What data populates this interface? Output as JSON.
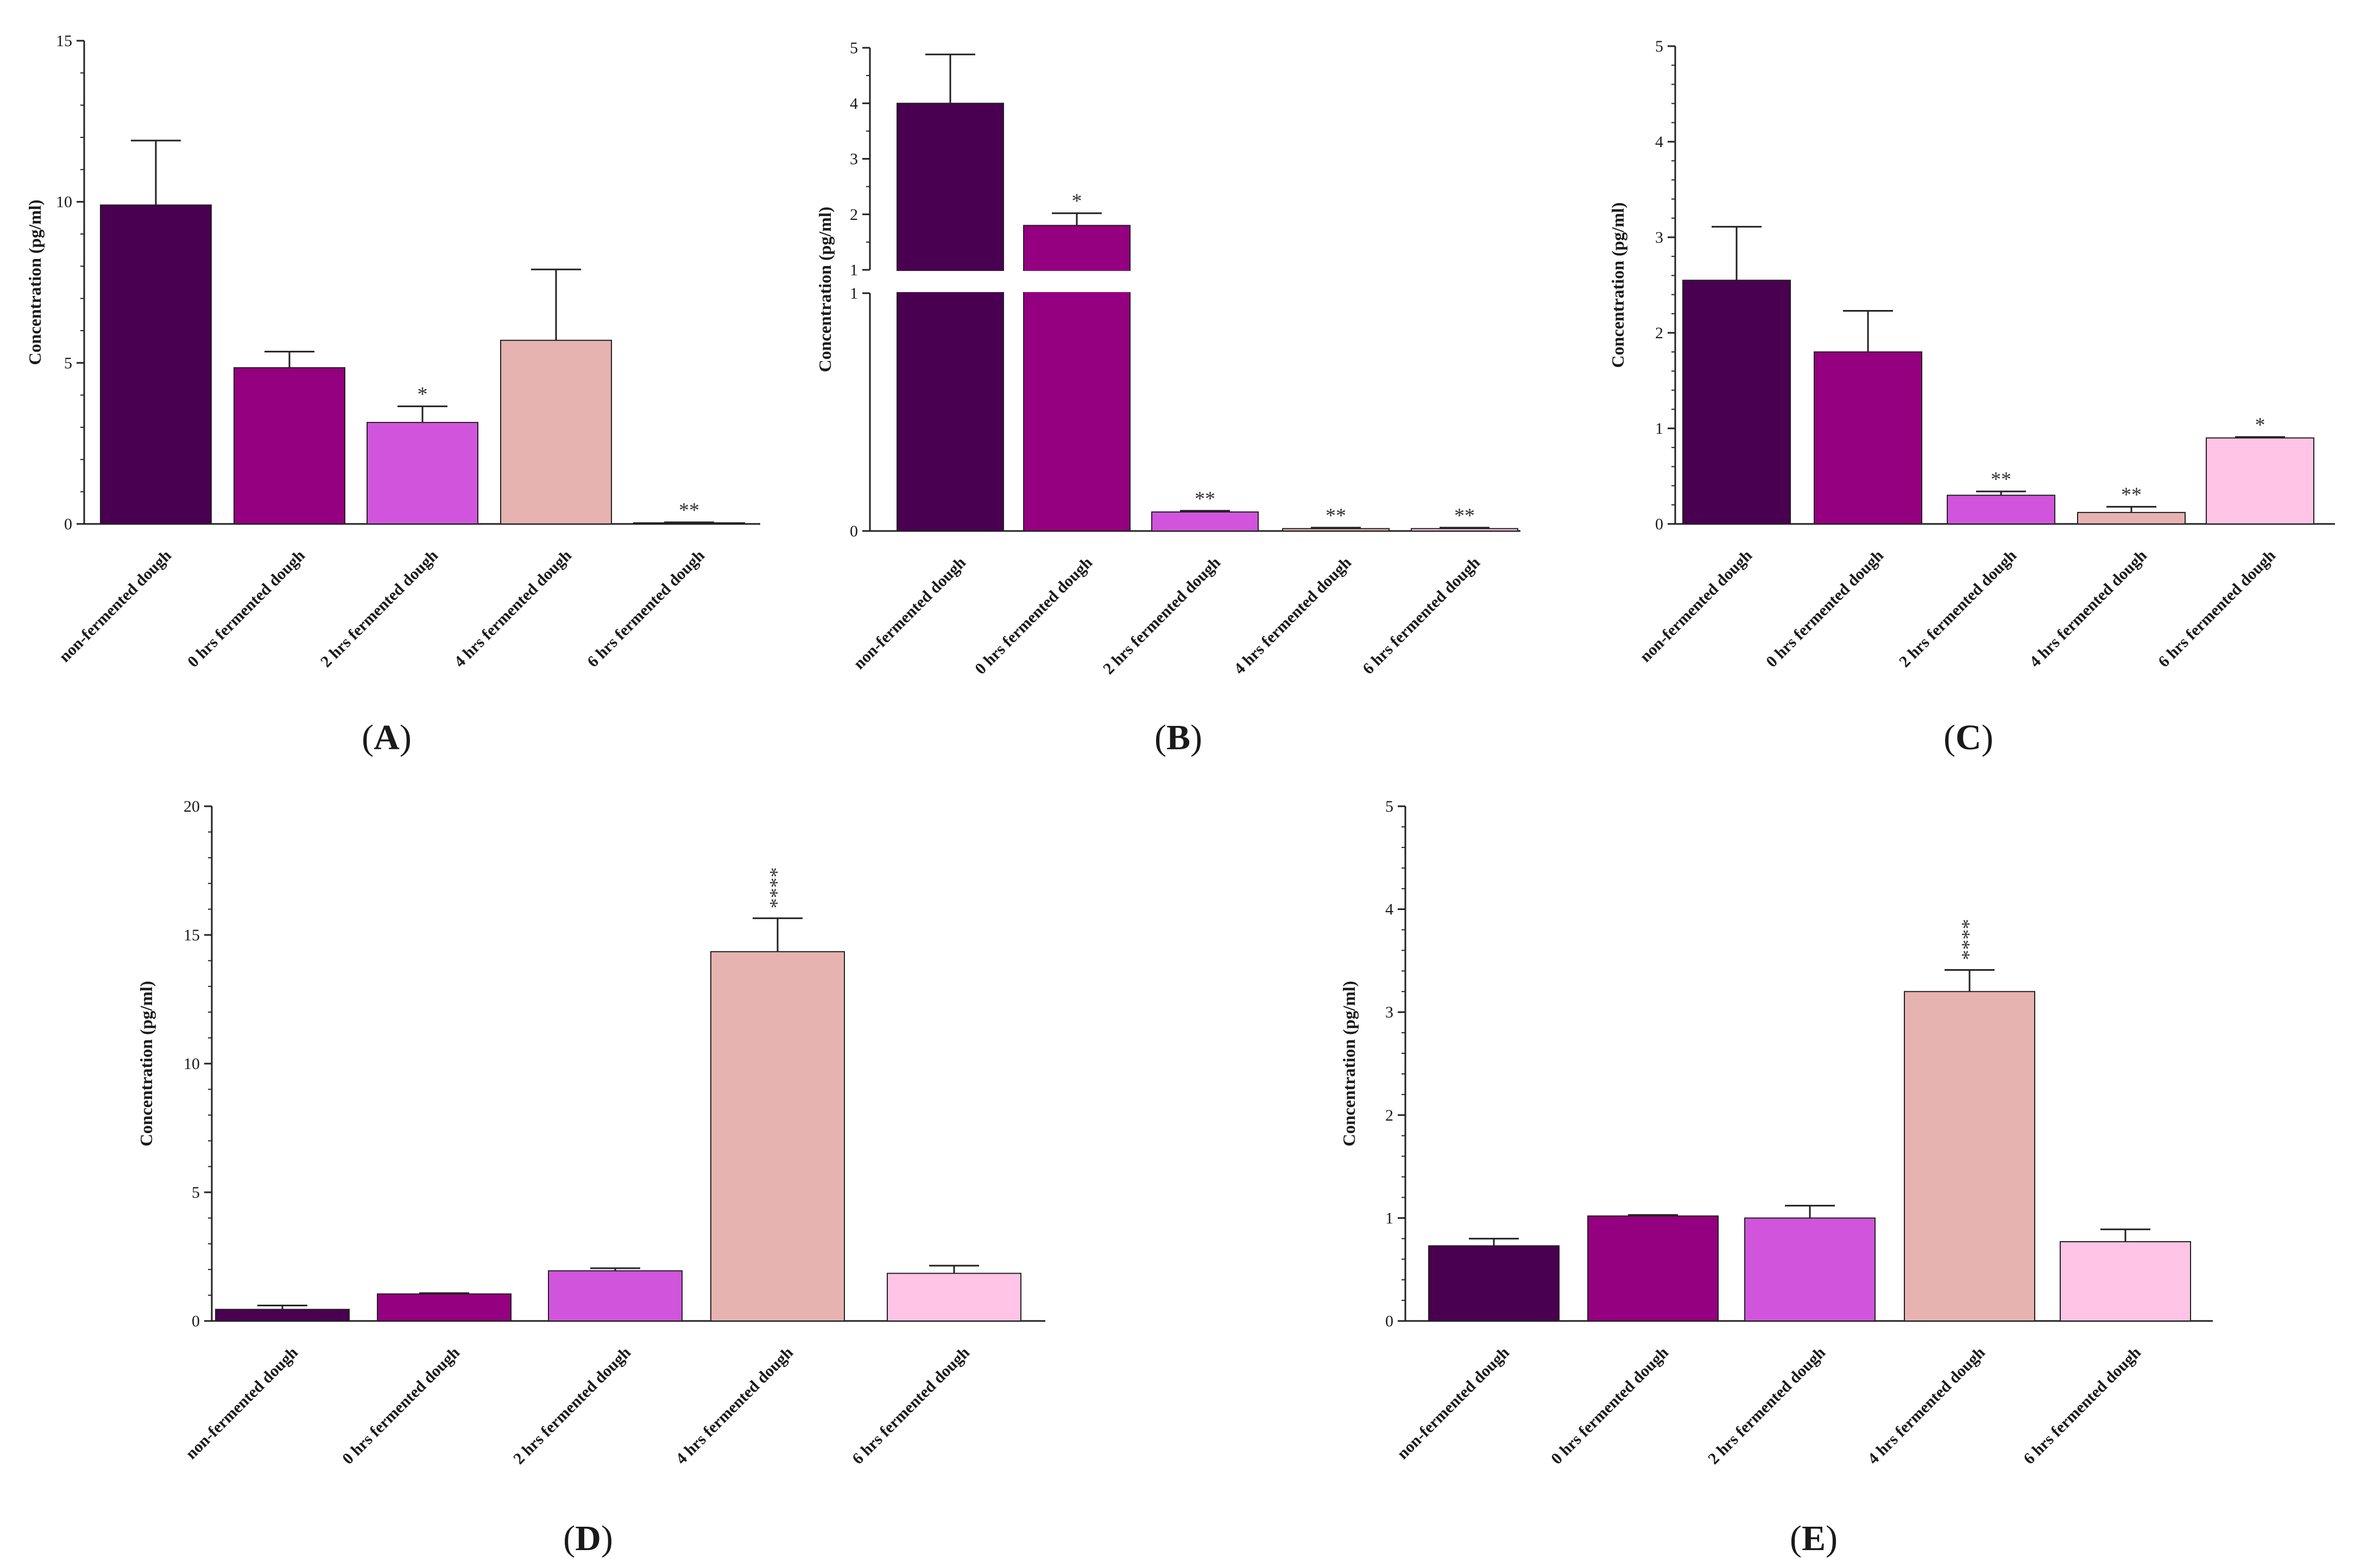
{
  "chart_data": [
    {
      "panel": "A",
      "type": "bar",
      "ylabel": "Concentration (pg/ml)",
      "ylim": [
        0,
        15
      ],
      "yticks": [
        0,
        5,
        10,
        15
      ],
      "categories": [
        "non-fermented dough",
        "0 hrs fermented dough",
        "2 hrs fermented dough",
        "4 hrs fermented dough",
        "6 hrs fermented dough"
      ],
      "values": [
        9.9,
        4.85,
        3.15,
        5.7,
        0.03
      ],
      "errors": [
        2.0,
        0.5,
        0.5,
        2.2,
        0.02
      ],
      "significance": [
        "",
        "",
        "*",
        "",
        "**"
      ],
      "colors": [
        "#4a0050",
        "#94007f",
        "#d155dc",
        "#e6b3b0",
        "#ffc4e6"
      ]
    },
    {
      "panel": "B",
      "type": "bar",
      "ylabel": "Concentration (pg/ml)",
      "broken_axis": true,
      "lower_ylim": [
        0,
        1
      ],
      "upper_ylim": [
        1,
        5
      ],
      "lower_yticks": [
        0,
        1
      ],
      "upper_yticks": [
        1,
        2,
        3,
        4,
        5
      ],
      "categories": [
        "non-fermented dough",
        "0 hrs fermented dough",
        "2 hrs fermented dough",
        "4 hrs fermented dough",
        "6 hrs fermented dough"
      ],
      "values": [
        4.0,
        1.8,
        0.08,
        0.01,
        0.01
      ],
      "errors": [
        0.88,
        0.22,
        0.005,
        0.004,
        0.004
      ],
      "significance": [
        "",
        "*",
        "**",
        "**",
        "**"
      ],
      "colors": [
        "#4a0050",
        "#94007f",
        "#d155dc",
        "#e6b3b0",
        "#ffc4e6"
      ]
    },
    {
      "panel": "C",
      "type": "bar",
      "ylabel": "Concentration (pg/ml)",
      "ylim": [
        0,
        5
      ],
      "yticks": [
        0,
        1,
        2,
        3,
        4,
        5
      ],
      "categories": [
        "non-fermented dough",
        "0 hrs fermented dough",
        "2 hrs fermented dough",
        "4 hrs fermented dough",
        "6 hrs fermented dough"
      ],
      "values": [
        2.55,
        1.8,
        0.3,
        0.12,
        0.9
      ],
      "errors": [
        0.56,
        0.43,
        0.04,
        0.06,
        0.01
      ],
      "significance": [
        "",
        "",
        "**",
        "**",
        "*"
      ],
      "colors": [
        "#4a0050",
        "#94007f",
        "#d155dc",
        "#e6b3b0",
        "#ffc4e6"
      ]
    },
    {
      "panel": "D",
      "type": "bar",
      "ylabel": "Concentration (pg/ml)",
      "ylim": [
        0,
        20
      ],
      "yticks": [
        0,
        5,
        10,
        15,
        20
      ],
      "categories": [
        "non-fermented dough",
        "0 hrs fermented dough",
        "2 hrs fermented dough",
        "4 hrs fermented dough",
        "6 hrs fermented dough"
      ],
      "values": [
        0.45,
        1.05,
        1.95,
        14.35,
        1.85
      ],
      "errors": [
        0.15,
        0.03,
        0.1,
        1.3,
        0.3
      ],
      "significance": [
        "",
        "",
        "",
        "****",
        ""
      ],
      "colors": [
        "#4a0050",
        "#94007f",
        "#d155dc",
        "#e6b3b0",
        "#ffc4e6"
      ]
    },
    {
      "panel": "E",
      "type": "bar",
      "ylabel": "Concentration (pg/ml)",
      "ylim": [
        0,
        5
      ],
      "yticks": [
        0,
        1,
        2,
        3,
        4,
        5
      ],
      "categories": [
        "non-fermented dough",
        "0 hrs fermented dough",
        "2 hrs fermented dough",
        "4 hrs fermented dough",
        "6 hrs fermented dough"
      ],
      "values": [
        0.73,
        1.02,
        1.0,
        3.2,
        0.77
      ],
      "errors": [
        0.07,
        0.01,
        0.12,
        0.21,
        0.12
      ],
      "significance": [
        "",
        "",
        "",
        "****",
        ""
      ],
      "colors": [
        "#4a0050",
        "#94007f",
        "#d155dc",
        "#e6b3b0",
        "#ffc4e6"
      ]
    }
  ]
}
